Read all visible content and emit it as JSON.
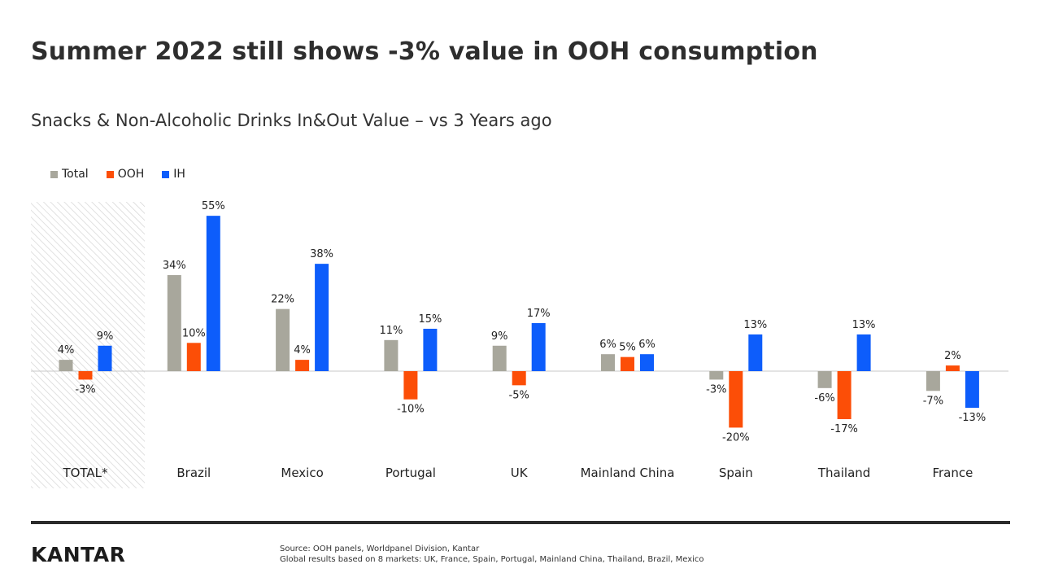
{
  "title": "Summer 2022 still shows -3% value in OOH consumption",
  "subtitle": "Snacks & Non-Alcoholic Drinks In&Out Value – vs 3 Years ago",
  "colors": {
    "Total": "#a8a79c",
    "OOH": "#fc4e07",
    "IH": "#0d5dfb",
    "hatch": "#d6d6d6",
    "axis": "#c9c9c9"
  },
  "chart_data": {
    "type": "bar",
    "categories": [
      "TOTAL*",
      "Brazil",
      "Mexico",
      "Portugal",
      "UK",
      "Mainland China",
      "Spain",
      "Thailand",
      "France"
    ],
    "series": [
      {
        "name": "Total",
        "values": [
          4,
          34,
          22,
          11,
          9,
          6,
          -3,
          -6,
          -7
        ],
        "labels": [
          "4%",
          "34%",
          "22%",
          "11%",
          "9%",
          "6%",
          "-3%",
          "-6%",
          "-7%"
        ]
      },
      {
        "name": "OOH",
        "values": [
          -3,
          10,
          4,
          -10,
          -5,
          5,
          -20,
          -17,
          2
        ],
        "labels": [
          "-3%",
          "10%",
          "4%",
          "-10%",
          "-5%",
          "5%",
          "-20%",
          "-17%",
          "2%"
        ]
      },
      {
        "name": "IH",
        "values": [
          9,
          55,
          38,
          15,
          17,
          6,
          13,
          13,
          -13
        ],
        "labels": [
          "9%",
          "55%",
          "38%",
          "15%",
          "17%",
          "6%",
          "13%",
          "13%",
          "-13%"
        ]
      }
    ],
    "highlighted_category": "TOTAL*",
    "ylim": [
      -30,
      60
    ],
    "xlabel": "",
    "ylabel": "",
    "grid": false,
    "legend_position": "top-left"
  },
  "footer": {
    "logo": "KANTAR",
    "source_line1": "Source: OOH panels, Worldpanel Division, Kantar",
    "source_line2": "Global results based on 8 markets: UK, France, Spain, Portugal, Mainland China, Thailand, Brazil, Mexico"
  }
}
